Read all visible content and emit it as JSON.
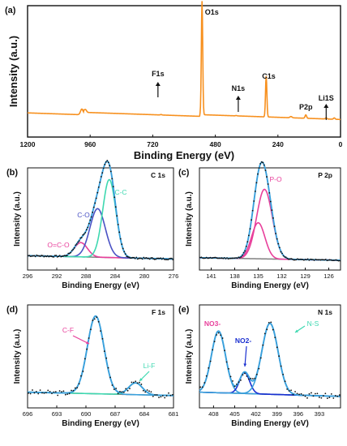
{
  "colors": {
    "survey": "#f7901e",
    "envelope": "#3aa0dc",
    "background": "#808080",
    "points": "#111111",
    "magenta": "#e8409b",
    "blue": "#4a52c4",
    "green": "#3ed8b0",
    "dark_blue": "#1a2fd0"
  },
  "chart_data": [
    {
      "panel": "(a)",
      "type": "line",
      "xlabel": "Binding Energy (eV)",
      "ylabel": "Intensity (a.u.)",
      "xlim": [
        1200,
        0
      ],
      "xticks": [
        1200,
        960,
        720,
        480,
        240,
        0
      ],
      "peaks": [
        {
          "label": "O1s",
          "x": 531,
          "height": 100
        },
        {
          "label": "C1s",
          "x": 285,
          "height": 36
        },
        {
          "label": "F1s",
          "x": 688,
          "height": 0.4
        },
        {
          "label": "N1s",
          "x": 400,
          "height": 0.3
        },
        {
          "label": "P2p",
          "x": 133,
          "height": 3
        },
        {
          "label": "Li1S",
          "x": 55,
          "height": 1
        }
      ],
      "annotations": [
        {
          "text": "O1s",
          "x": 520
        },
        {
          "text": "F1s",
          "x": 700
        },
        {
          "text": "N1s",
          "x": 392
        },
        {
          "text": "C1s",
          "x": 275
        },
        {
          "text": "P2p",
          "x": 133
        },
        {
          "text": "Li1S",
          "x": 55
        }
      ]
    },
    {
      "panel": "(b)",
      "corner_label": "C 1s",
      "type": "line",
      "xlabel": "Binding Energy (eV)",
      "ylabel": "Intensity (a.u.)",
      "xlim": [
        296,
        276
      ],
      "xticks": [
        296,
        292,
        288,
        284,
        280,
        276
      ],
      "components": [
        {
          "name": "O=C-O",
          "center": 288.7,
          "height": 0.17
        },
        {
          "name": "C-O",
          "center": 286.4,
          "height": 0.58
        },
        {
          "name": "C-C",
          "center": 284.8,
          "height": 0.93
        }
      ]
    },
    {
      "panel": "(c)",
      "corner_label": "P 2p",
      "type": "line",
      "xlabel": "Binding Energy (eV)",
      "ylabel": "Intensity (a.u.)",
      "xlim": [
        142.5,
        124.5
      ],
      "xticks": [
        141,
        138,
        135,
        132,
        129,
        126
      ],
      "components": [
        {
          "name": "P-O",
          "center": 134.2,
          "height": 0.83
        },
        {
          "name": "",
          "center": 135.0,
          "height": 0.43
        }
      ]
    },
    {
      "panel": "(d)",
      "corner_label": "F 1s",
      "type": "line",
      "xlabel": "Binding Energy (eV)",
      "ylabel": "Intensity (a.u.)",
      "xlim": [
        696,
        681
      ],
      "xticks": [
        696,
        693,
        690,
        687,
        684,
        681
      ],
      "components": [
        {
          "name": "C-F",
          "center": 689.0,
          "height": 0.92
        },
        {
          "name": "Li-F",
          "center": 684.9,
          "height": 0.14
        }
      ]
    },
    {
      "panel": "(e)",
      "corner_label": "N 1s",
      "type": "line",
      "xlabel": "Binding Energy (eV)",
      "ylabel": "Intensity (a.u.)",
      "xlim": [
        410,
        390
      ],
      "xticks": [
        408,
        405,
        402,
        399,
        396,
        393
      ],
      "components": [
        {
          "name": "NO3-",
          "center": 407.3,
          "height": 0.73
        },
        {
          "name": "NO2-",
          "center": 403.6,
          "height": 0.25
        },
        {
          "name": "N-S",
          "center": 400.0,
          "height": 0.84
        }
      ]
    }
  ]
}
